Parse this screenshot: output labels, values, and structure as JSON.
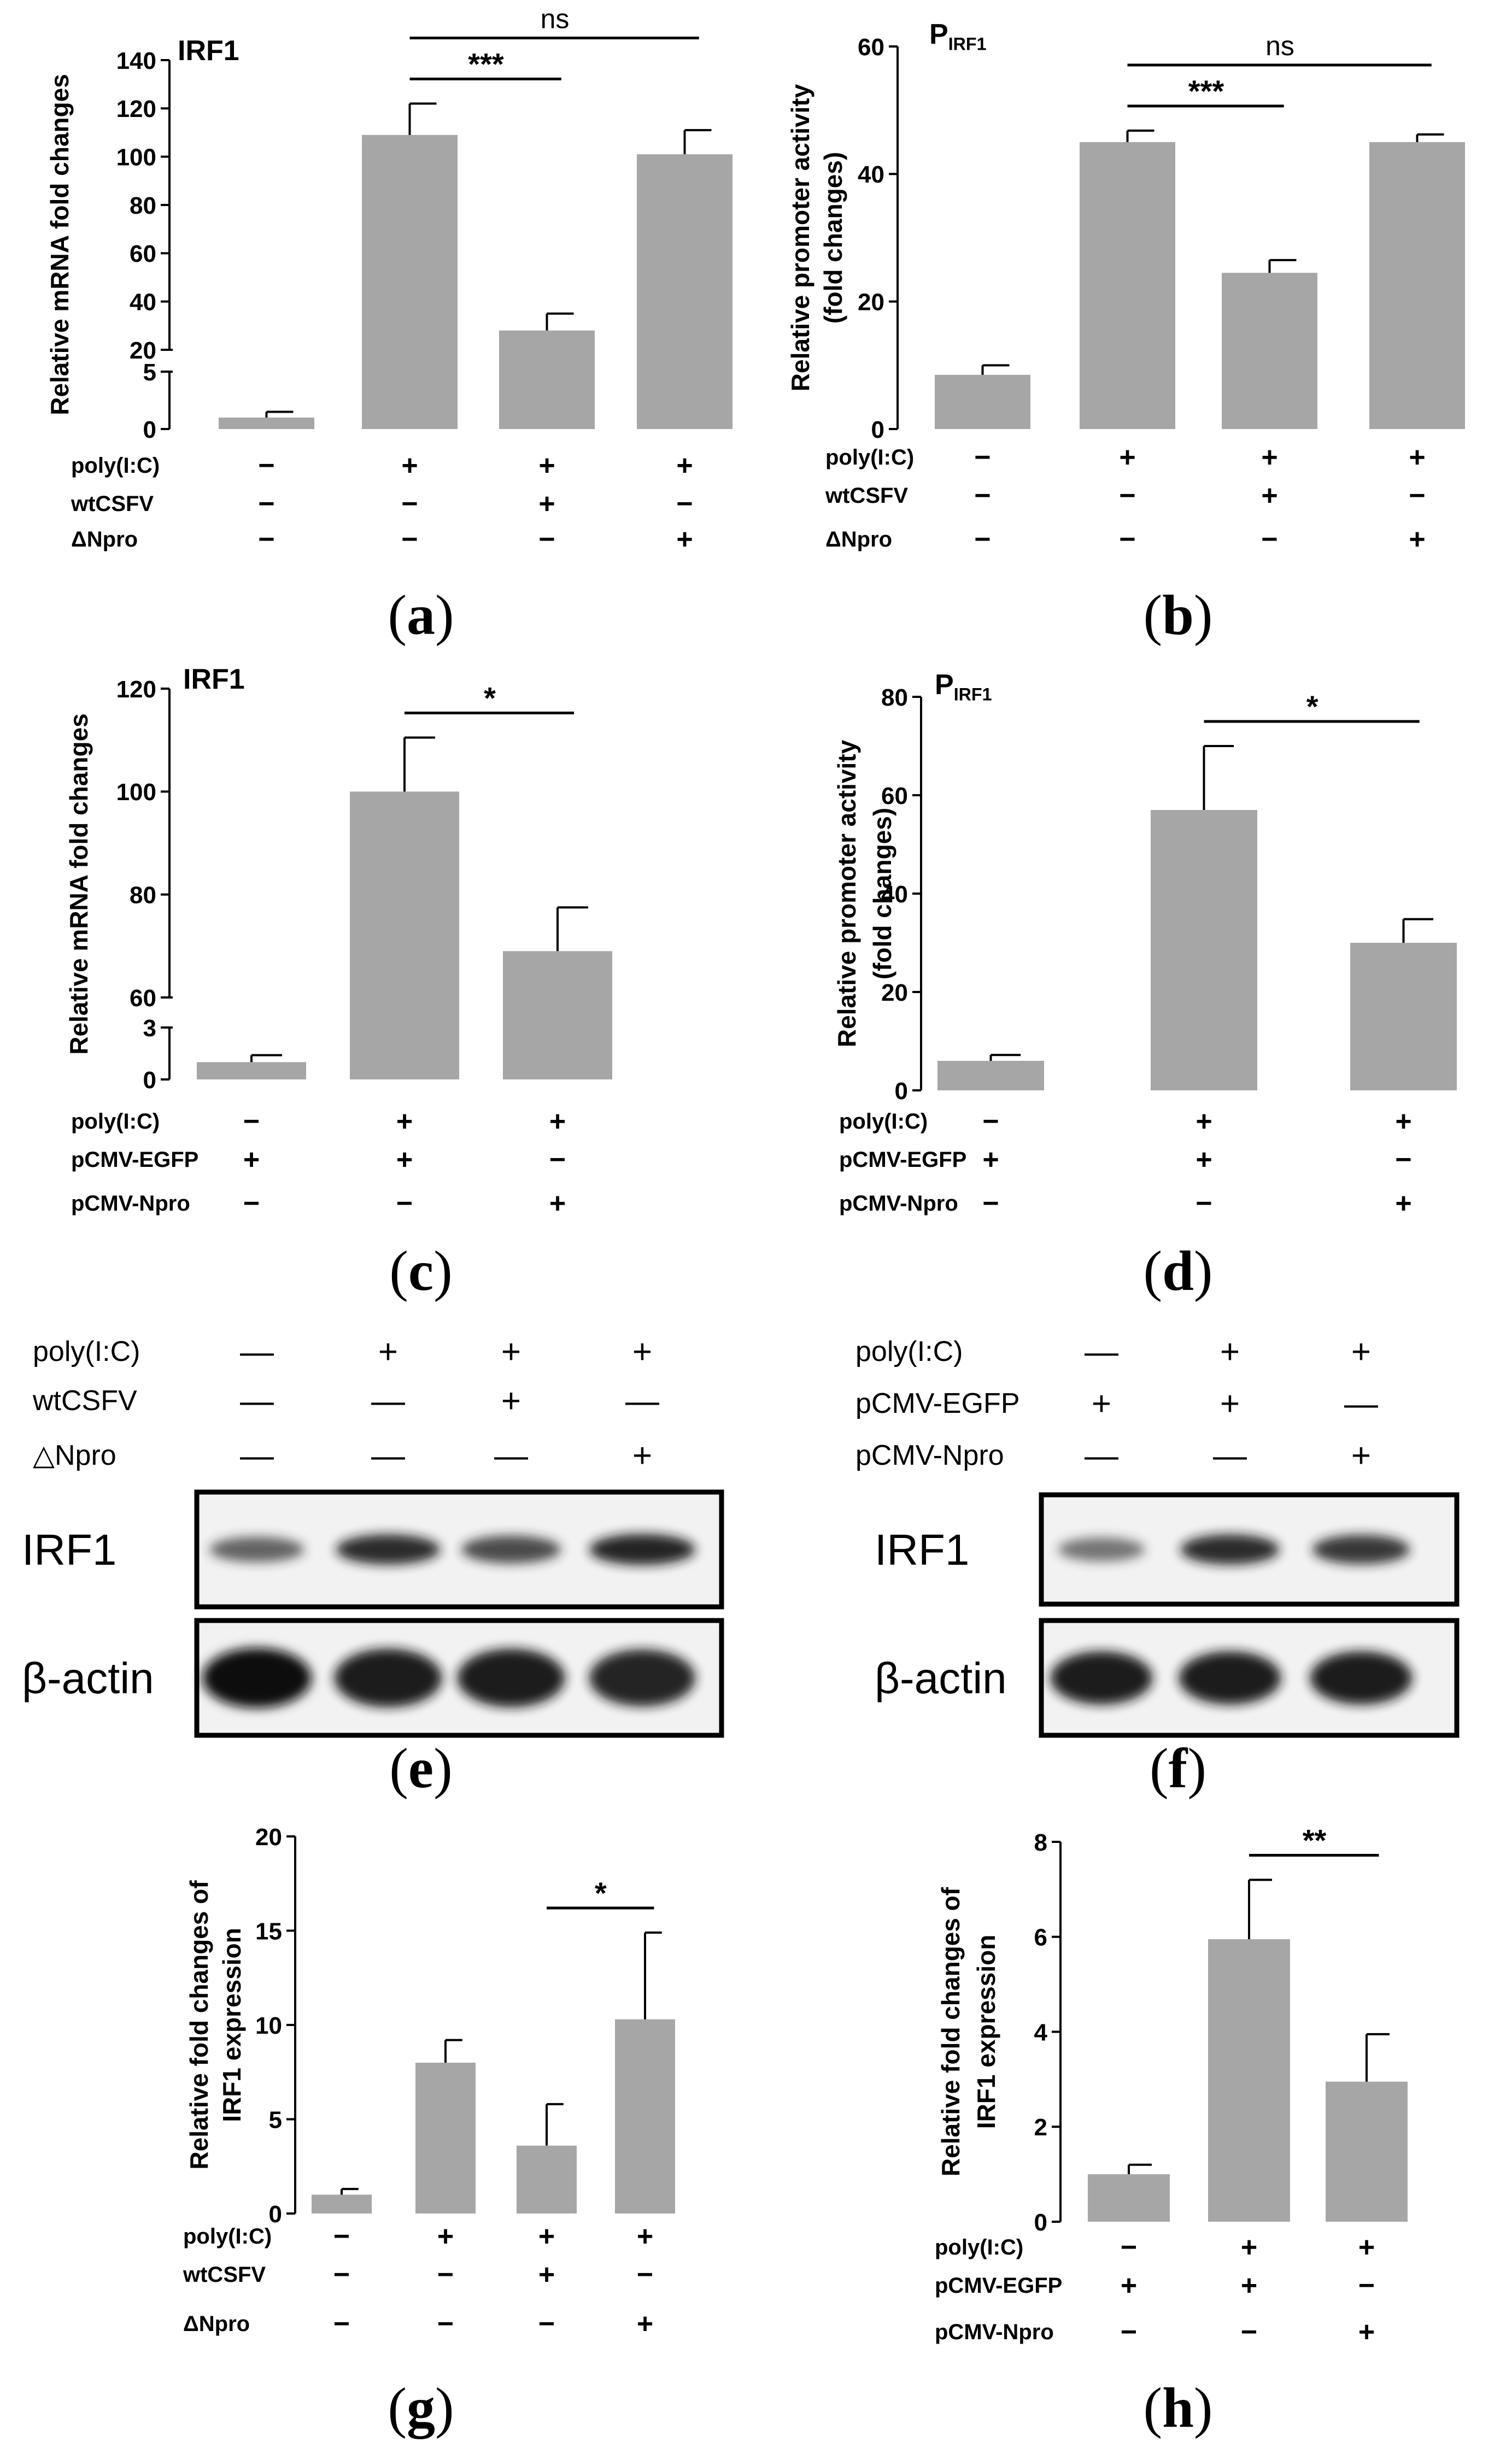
{
  "figure": {
    "panel_labels": [
      "(a)",
      "(b)",
      "(c)",
      "(d)",
      "(e)",
      "(f)",
      "(g)",
      "(h)"
    ],
    "panel_letters": [
      "a",
      "b",
      "c",
      "d",
      "e",
      "f",
      "g",
      "h"
    ]
  },
  "colors": {
    "bar": "#a6a6a6",
    "axis": "#000000",
    "background": "#ffffff"
  },
  "chart_data": [
    {
      "panel": "a",
      "type": "bar",
      "title": "IRF1",
      "ylabel": "Relative mRNA fold changes",
      "axis_break": {
        "lower": [
          0,
          5
        ],
        "upper": [
          20,
          140
        ]
      },
      "yticks_lower": [
        0,
        5
      ],
      "yticks_upper": [
        20,
        40,
        60,
        80,
        100,
        120,
        140
      ],
      "ytick_labels_lower": [
        "0",
        "5"
      ],
      "ytick_labels_upper": [
        "20",
        "40",
        "60",
        "80",
        "100",
        "120",
        "140"
      ],
      "values": [
        1,
        109,
        28,
        101
      ],
      "errors": [
        0.5,
        13,
        7,
        10
      ],
      "conditions": [
        {
          "label": "poly(I:C)",
          "signs": [
            "−",
            "+",
            "+",
            "+"
          ]
        },
        {
          "label": "wtCSFV",
          "signs": [
            "−",
            "−",
            "+",
            "−"
          ]
        },
        {
          "label": "ΔNpro",
          "signs": [
            "−",
            "−",
            "−",
            "+"
          ]
        }
      ],
      "significance": [
        {
          "from": 1,
          "to": 2,
          "label": "***"
        },
        {
          "from": 1,
          "to": 3,
          "label": "ns"
        }
      ]
    },
    {
      "panel": "b",
      "type": "bar",
      "title": "P",
      "title_sub": "IRF1",
      "ylabel": "Relative promoter activity",
      "ylabel2": "(fold changes)",
      "ylim": [
        0,
        60
      ],
      "yticks": [
        0,
        20,
        40,
        60
      ],
      "ytick_labels": [
        "0",
        "20",
        "40",
        "60"
      ],
      "values": [
        8.5,
        45,
        24.5,
        45
      ],
      "errors": [
        1.5,
        1.8,
        2,
        1.2
      ],
      "conditions": [
        {
          "label": "poly(I:C)",
          "signs": [
            "−",
            "+",
            "+",
            "+"
          ]
        },
        {
          "label": "wtCSFV",
          "signs": [
            "−",
            "−",
            "+",
            "−"
          ]
        },
        {
          "label": "ΔNpro",
          "signs": [
            "−",
            "−",
            "−",
            "+"
          ]
        }
      ],
      "significance": [
        {
          "from": 1,
          "to": 2,
          "label": "***"
        },
        {
          "from": 1,
          "to": 3,
          "label": "ns"
        }
      ]
    },
    {
      "panel": "c",
      "type": "bar",
      "title": "IRF1",
      "ylabel": "Relative mRNA fold changes",
      "axis_break": {
        "lower": [
          0,
          3
        ],
        "upper": [
          60,
          120
        ]
      },
      "yticks_lower": [
        0,
        3
      ],
      "yticks_upper": [
        60,
        80,
        100,
        120
      ],
      "ytick_labels_lower": [
        "0",
        "3"
      ],
      "ytick_labels_upper": [
        "60",
        "80",
        "100",
        "120"
      ],
      "values": [
        1,
        100,
        69
      ],
      "errors": [
        0.4,
        10.5,
        8.5
      ],
      "conditions": [
        {
          "label": "poly(I:C)",
          "signs": [
            "−",
            "+",
            "+"
          ]
        },
        {
          "label": "pCMV-EGFP",
          "signs": [
            "+",
            "+",
            "−"
          ]
        },
        {
          "label": "pCMV-Npro",
          "signs": [
            "−",
            "−",
            "+"
          ]
        }
      ],
      "significance": [
        {
          "from": 1,
          "to": 2,
          "label": "*"
        }
      ]
    },
    {
      "panel": "d",
      "type": "bar",
      "title": "P",
      "title_sub": "IRF1",
      "ylabel": "Relative promoter activity",
      "ylabel2": "(fold changes)",
      "ylim": [
        0,
        80
      ],
      "yticks": [
        0,
        20,
        40,
        60,
        80
      ],
      "ytick_labels": [
        "0",
        "20",
        "40",
        "60",
        "80"
      ],
      "values": [
        6,
        57,
        30
      ],
      "errors": [
        1.2,
        13,
        4.8
      ],
      "conditions": [
        {
          "label": "poly(I:C)",
          "signs": [
            "−",
            "+",
            "+"
          ]
        },
        {
          "label": "pCMV-EGFP",
          "signs": [
            "+",
            "+",
            "−"
          ]
        },
        {
          "label": "pCMV-Npro",
          "signs": [
            "−",
            "−",
            "+"
          ]
        }
      ],
      "significance": [
        {
          "from": 1,
          "to": 2,
          "label": "*"
        }
      ]
    },
    {
      "panel": "g",
      "type": "bar",
      "ylabel": "Relative fold changes of",
      "ylabel2": "IRF1 expression",
      "ylim": [
        0,
        20
      ],
      "yticks": [
        0,
        5,
        10,
        15,
        20
      ],
      "ytick_labels": [
        "0",
        "5",
        "10",
        "15",
        "20"
      ],
      "values": [
        1,
        8,
        3.6,
        10.3
      ],
      "errors": [
        0.3,
        1.2,
        2.2,
        4.6
      ],
      "conditions": [
        {
          "label": "poly(I:C)",
          "signs": [
            "−",
            "+",
            "+",
            "+"
          ]
        },
        {
          "label": "wtCSFV",
          "signs": [
            "−",
            "−",
            "+",
            "−"
          ]
        },
        {
          "label": "ΔNpro",
          "signs": [
            "−",
            "−",
            "−",
            "+"
          ]
        }
      ],
      "significance": [
        {
          "from": 2,
          "to": 3,
          "label": "*"
        }
      ]
    },
    {
      "panel": "h",
      "type": "bar",
      "ylabel": "Relative fold changes of",
      "ylabel2": "IRF1 expression",
      "ylim": [
        0,
        8
      ],
      "yticks": [
        0,
        2,
        4,
        6,
        8
      ],
      "ytick_labels": [
        "0",
        "2",
        "4",
        "6",
        "8"
      ],
      "values": [
        1,
        5.95,
        2.95
      ],
      "errors": [
        0.2,
        1.25,
        1
      ],
      "conditions": [
        {
          "label": "poly(I:C)",
          "signs": [
            "−",
            "+",
            "+"
          ]
        },
        {
          "label": "pCMV-EGFP",
          "signs": [
            "+",
            "+",
            "−"
          ]
        },
        {
          "label": "pCMV-Npro",
          "signs": [
            "−",
            "−",
            "+"
          ]
        }
      ],
      "significance": [
        {
          "from": 1,
          "to": 2,
          "label": "**"
        }
      ]
    }
  ],
  "blots": [
    {
      "panel": "e",
      "conditions": [
        {
          "label": "poly(I:C)",
          "signs": [
            "—",
            "+",
            "+",
            "+"
          ]
        },
        {
          "label": "wtCSFV",
          "signs": [
            "—",
            "—",
            "+",
            "—"
          ]
        },
        {
          "label": "△Npro",
          "signs": [
            "—",
            "—",
            "—",
            "+"
          ]
        }
      ],
      "rows": [
        {
          "label": "IRF1",
          "intensities": [
            0.55,
            0.85,
            0.7,
            0.9
          ]
        },
        {
          "label": "β-actin",
          "intensities": [
            1,
            0.95,
            0.95,
            0.9
          ]
        }
      ]
    },
    {
      "panel": "f",
      "conditions": [
        {
          "label": "poly(I:C)",
          "signs": [
            "—",
            "+",
            "+"
          ]
        },
        {
          "label": "pCMV-EGFP",
          "signs": [
            "+",
            "+",
            "—"
          ]
        },
        {
          "label": "pCMV-Npro",
          "signs": [
            "—",
            "—",
            "+"
          ]
        }
      ],
      "rows": [
        {
          "label": "IRF1",
          "intensities": [
            0.45,
            0.85,
            0.8
          ]
        },
        {
          "label": "β-actin",
          "intensities": [
            0.95,
            0.95,
            0.95
          ]
        }
      ]
    }
  ]
}
